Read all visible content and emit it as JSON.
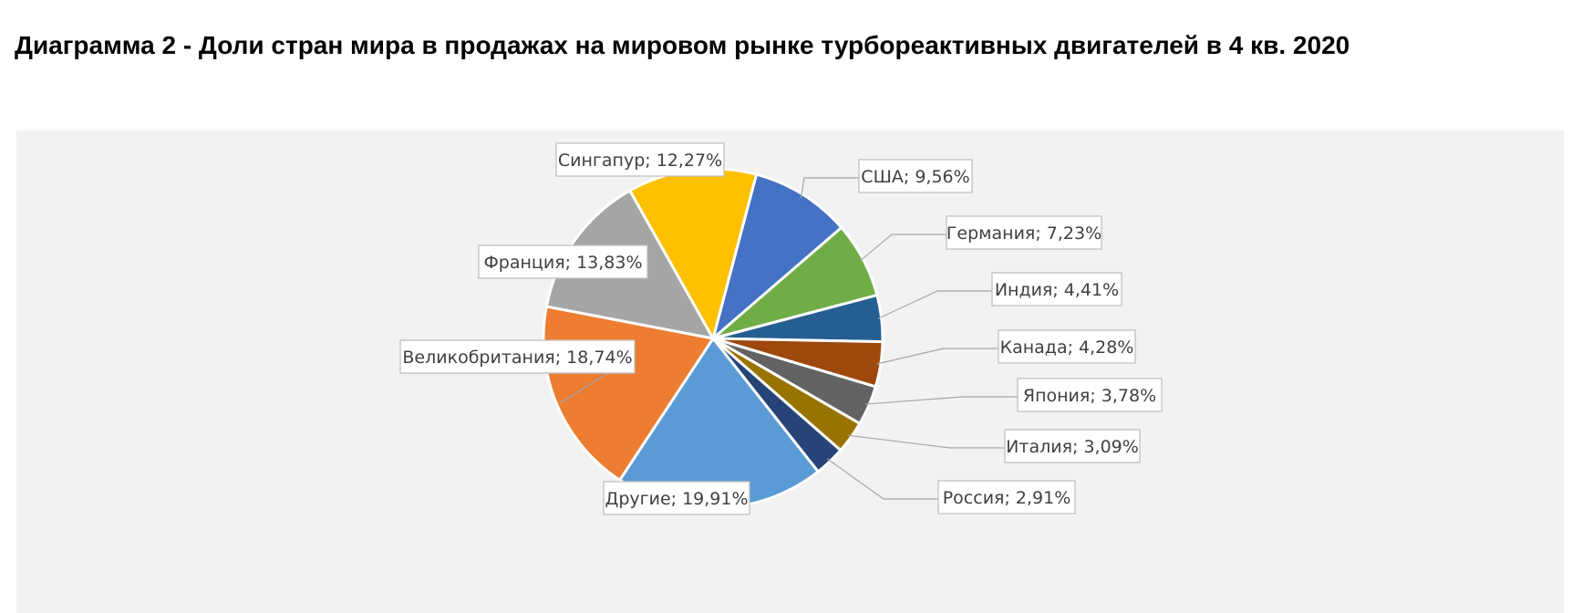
{
  "title": "Диаграмма 2 - Доли стран мира в продажах на мировом рынке турбореактивных двигателей в 4 кв. 2020",
  "chart_data": {
    "type": "pie",
    "title": "",
    "slices": [
      {
        "label": "США",
        "value": 9.56,
        "display": "9,56%",
        "color": "#4472c4"
      },
      {
        "label": "Германия",
        "value": 7.23,
        "display": "7,23%",
        "color": "#70ad47"
      },
      {
        "label": "Индия",
        "value": 4.41,
        "display": "4,41%",
        "color": "#255e91"
      },
      {
        "label": "Канада",
        "value": 4.28,
        "display": "4,28%",
        "color": "#9e480e"
      },
      {
        "label": "Япония",
        "value": 3.78,
        "display": "3,78%",
        "color": "#636363"
      },
      {
        "label": "Италия",
        "value": 3.09,
        "display": "3,09%",
        "color": "#997300"
      },
      {
        "label": "Россия",
        "value": 2.91,
        "display": "2,91%",
        "color": "#264478"
      },
      {
        "label": "Другие",
        "value": 19.91,
        "display": "19,91%",
        "color": "#5b9bd5"
      },
      {
        "label": "Великобритания",
        "value": 18.74,
        "display": "18,74%",
        "color": "#ed7d31"
      },
      {
        "label": "Франция",
        "value": 13.83,
        "display": "13,83%",
        "color": "#a5a5a5"
      },
      {
        "label": "Сингапур",
        "value": 12.27,
        "display": "12,27%",
        "color": "#ffc000"
      }
    ],
    "label_separator": "; ",
    "legend": "none",
    "background": "#f2f2f2"
  }
}
